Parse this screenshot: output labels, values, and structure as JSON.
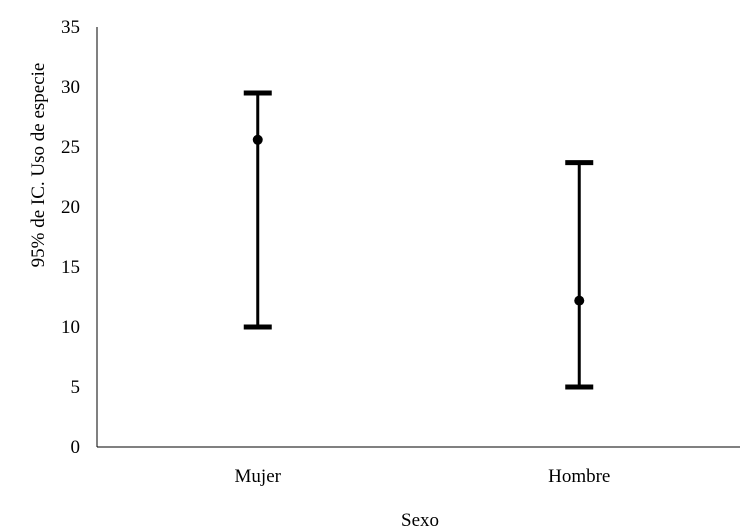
{
  "chart_data": {
    "type": "errorbar",
    "title": "",
    "xlabel": "Sexo",
    "ylabel": "95% de IC. Uso de especie",
    "ylim": [
      0,
      35
    ],
    "yticks": [
      "0",
      "5",
      "10",
      "15",
      "20",
      "25",
      "30",
      "35"
    ],
    "categories": [
      "Mujer",
      "Hombre"
    ],
    "series": [
      {
        "mean": [
          25.6,
          12.2
        ],
        "lower": [
          10.0,
          5.0
        ],
        "upper": [
          29.5,
          23.7
        ]
      }
    ],
    "grid": false,
    "legend": "none",
    "colors": {
      "marks": "#000000",
      "axis": "#000000",
      "text": "#000000"
    }
  }
}
